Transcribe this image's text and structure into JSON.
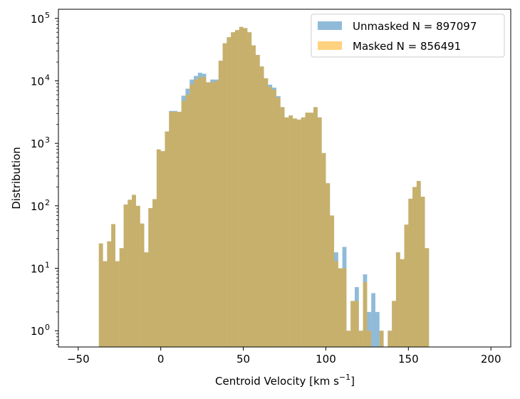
{
  "chart_data": {
    "type": "histogram",
    "xlabel": "Centroid Velocity [km s",
    "xlabel_sup": "−1",
    "xlabel_end": "]",
    "ylabel": "Distribution",
    "yscale": "log",
    "xlim": [
      -62,
      212
    ],
    "ylim": [
      0.55,
      140000
    ],
    "x_ticks": [
      -50,
      0,
      50,
      100,
      150,
      200
    ],
    "x_tick_labels": [
      "−50",
      "0",
      "50",
      "100",
      "150",
      "200"
    ],
    "y_ticks": [
      1,
      10,
      100,
      1000,
      10000,
      100000
    ],
    "y_tick_base": "10",
    "y_tick_exponents": [
      "0",
      "1",
      "2",
      "3",
      "4",
      "5"
    ],
    "legend_position": "top-right",
    "bin_start": -37.5,
    "bin_width": 2.5,
    "series": [
      {
        "name": "Unmasked N = 897097",
        "color": "#1f77b4",
        "alpha": 0.5,
        "values": [
          25,
          13,
          27,
          51,
          13,
          21,
          105,
          125,
          150,
          100,
          52,
          18,
          92,
          128,
          800,
          750,
          1550,
          3300,
          3300,
          3200,
          5800,
          7500,
          10500,
          12000,
          13500,
          13000,
          9500,
          10500,
          10500,
          21000,
          40000,
          50000,
          60000,
          65000,
          73000,
          70000,
          60000,
          37000,
          26000,
          17000,
          11000,
          8700,
          7800,
          5700,
          3800,
          2600,
          2800,
          2500,
          2400,
          2600,
          3100,
          3100,
          3800,
          2600,
          700,
          230,
          70,
          18,
          10,
          22,
          1,
          3,
          5,
          1,
          8,
          2,
          4,
          2,
          1,
          0,
          1,
          3,
          18,
          14,
          50,
          130,
          200,
          250,
          140,
          21
        ]
      },
      {
        "name": "Masked N = 856491",
        "color": "#ffa500",
        "alpha": 0.5,
        "values": [
          25,
          13,
          27,
          51,
          13,
          21,
          105,
          125,
          150,
          100,
          52,
          18,
          92,
          128,
          800,
          750,
          1550,
          3200,
          3200,
          3200,
          4800,
          6000,
          8800,
          10500,
          11500,
          11500,
          9500,
          9500,
          10000,
          21000,
          40000,
          50000,
          60000,
          65000,
          73000,
          70000,
          60000,
          37000,
          26000,
          17000,
          11000,
          8000,
          7200,
          5400,
          3800,
          2600,
          2800,
          2500,
          2400,
          2600,
          3100,
          3100,
          3800,
          2600,
          700,
          230,
          70,
          13,
          10,
          10,
          1,
          3,
          3,
          1,
          6,
          1,
          0,
          0,
          1,
          0,
          1,
          3,
          18,
          14,
          50,
          130,
          200,
          250,
          140,
          21
        ]
      }
    ]
  }
}
